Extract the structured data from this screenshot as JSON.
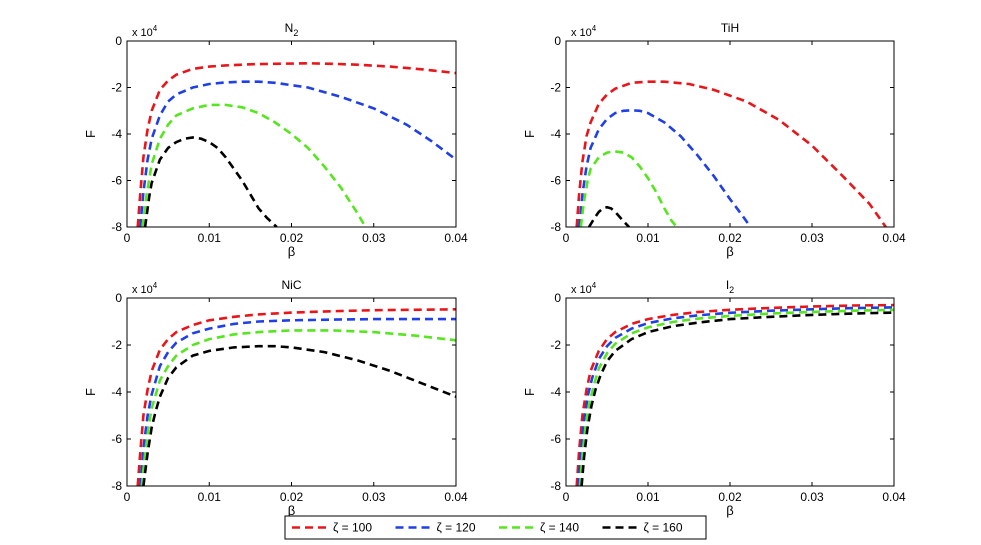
{
  "colors": {
    "red": "#e8161b",
    "blue": "#1f3fe8",
    "green": "#55e61e",
    "black": "#000000"
  },
  "legend": {
    "entries": [
      {
        "label": "ζ = 100",
        "color": "#e8161b"
      },
      {
        "label": "ζ = 120",
        "color": "#1f3fe8"
      },
      {
        "label": "ζ = 140",
        "color": "#55e61e"
      },
      {
        "label": "ζ = 160",
        "color": "#000000"
      }
    ]
  },
  "chart_data": [
    {
      "type": "line",
      "title_main": "N",
      "title_sub": "2",
      "xlabel": "β",
      "ylabel": "F",
      "exponent_label": "x 10",
      "exponent_power": "4",
      "xlim": [
        0,
        0.04
      ],
      "ylim": [
        -8,
        0
      ],
      "xticks": [
        "0",
        "0.01",
        "0.02",
        "0.03",
        "0.04"
      ],
      "yticks": [
        "0",
        "-2",
        "-4",
        "-6",
        "-8"
      ],
      "series": [
        {
          "name": "ζ = 100",
          "color": "#e8161b",
          "x": [
            0.0013,
            0.0016,
            0.002,
            0.0025,
            0.003,
            0.004,
            0.005,
            0.006,
            0.008,
            0.01,
            0.012,
            0.015,
            0.018,
            0.022,
            0.025,
            0.028,
            0.032,
            0.036,
            0.04
          ],
          "y": [
            -8,
            -6.6,
            -5.0,
            -3.8,
            -3.0,
            -2.1,
            -1.7,
            -1.45,
            -1.2,
            -1.1,
            -1.05,
            -1.0,
            -0.98,
            -0.96,
            -0.98,
            -1.02,
            -1.1,
            -1.22,
            -1.38
          ]
        },
        {
          "name": "ζ = 120",
          "color": "#1f3fe8",
          "x": [
            0.0016,
            0.002,
            0.0025,
            0.003,
            0.004,
            0.005,
            0.006,
            0.008,
            0.01,
            0.012,
            0.014,
            0.016,
            0.018,
            0.022,
            0.026,
            0.03,
            0.034,
            0.037,
            0.04
          ],
          "y": [
            -8,
            -6.5,
            -5.1,
            -4.2,
            -3.2,
            -2.6,
            -2.3,
            -2.0,
            -1.85,
            -1.78,
            -1.75,
            -1.75,
            -1.8,
            -2.0,
            -2.4,
            -2.9,
            -3.6,
            -4.3,
            -5.1
          ]
        },
        {
          "name": "ζ = 140",
          "color": "#55e61e",
          "x": [
            0.0019,
            0.0023,
            0.003,
            0.004,
            0.005,
            0.006,
            0.008,
            0.01,
            0.012,
            0.014,
            0.016,
            0.018,
            0.02,
            0.022,
            0.024,
            0.026,
            0.028,
            0.029
          ],
          "y": [
            -8,
            -6.8,
            -5.3,
            -4.2,
            -3.6,
            -3.2,
            -2.9,
            -2.75,
            -2.75,
            -2.85,
            -3.1,
            -3.5,
            -4.0,
            -4.6,
            -5.4,
            -6.3,
            -7.4,
            -8
          ]
        },
        {
          "name": "ζ = 160",
          "color": "#000000",
          "x": [
            0.0022,
            0.0027,
            0.003,
            0.004,
            0.005,
            0.006,
            0.007,
            0.008,
            0.009,
            0.01,
            0.011,
            0.012,
            0.013,
            0.014,
            0.015,
            0.016,
            0.017,
            0.0182
          ],
          "y": [
            -8,
            -6.7,
            -6.1,
            -5.1,
            -4.6,
            -4.35,
            -4.2,
            -4.15,
            -4.2,
            -4.35,
            -4.6,
            -5.0,
            -5.5,
            -6.0,
            -6.6,
            -7.2,
            -7.6,
            -8
          ]
        }
      ]
    },
    {
      "type": "line",
      "title_main": "TiH",
      "title_sub": "",
      "xlabel": "β",
      "ylabel": "F",
      "exponent_label": "x 10",
      "exponent_power": "4",
      "xlim": [
        0,
        0.04
      ],
      "ylim": [
        -8,
        0
      ],
      "xticks": [
        "0",
        "0.01",
        "0.02",
        "0.03",
        "0.04"
      ],
      "yticks": [
        "0",
        "-2",
        "-4",
        "-6",
        "-8"
      ],
      "series": [
        {
          "name": "ζ = 100",
          "color": "#e8161b",
          "x": [
            0.0013,
            0.0016,
            0.002,
            0.0025,
            0.003,
            0.004,
            0.005,
            0.006,
            0.008,
            0.01,
            0.012,
            0.015,
            0.018,
            0.022,
            0.026,
            0.03,
            0.034,
            0.037,
            0.039
          ],
          "y": [
            -8,
            -6.6,
            -5.2,
            -4.1,
            -3.5,
            -2.7,
            -2.3,
            -2.05,
            -1.8,
            -1.75,
            -1.75,
            -1.85,
            -2.1,
            -2.6,
            -3.4,
            -4.5,
            -5.9,
            -7.0,
            -8
          ]
        },
        {
          "name": "ζ = 120",
          "color": "#1f3fe8",
          "x": [
            0.0016,
            0.002,
            0.0025,
            0.003,
            0.004,
            0.005,
            0.006,
            0.007,
            0.008,
            0.009,
            0.01,
            0.012,
            0.014,
            0.016,
            0.018,
            0.02,
            0.0215,
            0.0225
          ],
          "y": [
            -8,
            -6.6,
            -5.4,
            -4.6,
            -3.8,
            -3.35,
            -3.1,
            -3.0,
            -2.98,
            -3.0,
            -3.1,
            -3.5,
            -4.1,
            -4.9,
            -5.8,
            -6.8,
            -7.5,
            -8
          ]
        },
        {
          "name": "ζ = 140",
          "color": "#55e61e",
          "x": [
            0.0018,
            0.0022,
            0.0027,
            0.003,
            0.004,
            0.005,
            0.006,
            0.007,
            0.008,
            0.009,
            0.01,
            0.011,
            0.012,
            0.0128,
            0.0135
          ],
          "y": [
            -8,
            -6.9,
            -5.9,
            -5.5,
            -5.0,
            -4.8,
            -4.75,
            -4.8,
            -5.0,
            -5.4,
            -5.9,
            -6.5,
            -7.2,
            -7.7,
            -8
          ]
        },
        {
          "name": "ζ = 160",
          "color": "#000000",
          "x": [
            0.0028,
            0.0035,
            0.004,
            0.0045,
            0.005,
            0.0055,
            0.006,
            0.0065,
            0.007,
            0.0077
          ],
          "y": [
            -8,
            -7.6,
            -7.35,
            -7.2,
            -7.15,
            -7.2,
            -7.35,
            -7.55,
            -7.75,
            -8
          ]
        }
      ]
    },
    {
      "type": "line",
      "title_main": "NiC",
      "title_sub": "",
      "xlabel": "β",
      "ylabel": "F",
      "exponent_label": "x 10",
      "exponent_power": "4",
      "xlim": [
        0,
        0.04
      ],
      "ylim": [
        -8,
        0
      ],
      "xticks": [
        "0",
        "0.01",
        "0.02",
        "0.03",
        "0.04"
      ],
      "yticks": [
        "0",
        "-2",
        "-4",
        "-6",
        "-8"
      ],
      "series": [
        {
          "name": "ζ = 100",
          "color": "#e8161b",
          "x": [
            0.0013,
            0.0016,
            0.002,
            0.0025,
            0.003,
            0.004,
            0.005,
            0.006,
            0.008,
            0.01,
            0.013,
            0.016,
            0.02,
            0.025,
            0.03,
            0.035,
            0.04
          ],
          "y": [
            -8,
            -6.6,
            -5.0,
            -3.9,
            -3.1,
            -2.2,
            -1.75,
            -1.45,
            -1.15,
            -0.95,
            -0.8,
            -0.7,
            -0.62,
            -0.56,
            -0.52,
            -0.5,
            -0.48
          ]
        },
        {
          "name": "ζ = 120",
          "color": "#1f3fe8",
          "x": [
            0.0016,
            0.002,
            0.0025,
            0.003,
            0.004,
            0.005,
            0.006,
            0.008,
            0.01,
            0.013,
            0.016,
            0.02,
            0.025,
            0.03,
            0.035,
            0.04
          ],
          "y": [
            -8,
            -6.4,
            -5.0,
            -4.1,
            -2.9,
            -2.3,
            -1.9,
            -1.5,
            -1.3,
            -1.1,
            -1.0,
            -0.95,
            -0.92,
            -0.9,
            -0.9,
            -0.9
          ]
        },
        {
          "name": "ζ = 140",
          "color": "#55e61e",
          "x": [
            0.0018,
            0.0022,
            0.0027,
            0.003,
            0.004,
            0.005,
            0.006,
            0.008,
            0.01,
            0.013,
            0.016,
            0.02,
            0.025,
            0.03,
            0.035,
            0.04
          ],
          "y": [
            -8,
            -6.6,
            -5.3,
            -4.7,
            -3.5,
            -2.9,
            -2.45,
            -2.0,
            -1.75,
            -1.55,
            -1.45,
            -1.38,
            -1.38,
            -1.45,
            -1.6,
            -1.8
          ]
        },
        {
          "name": "ζ = 160",
          "color": "#000000",
          "x": [
            0.002,
            0.0025,
            0.003,
            0.0035,
            0.004,
            0.005,
            0.006,
            0.008,
            0.01,
            0.013,
            0.016,
            0.018,
            0.02,
            0.024,
            0.028,
            0.032,
            0.036,
            0.04
          ],
          "y": [
            -8,
            -6.6,
            -5.5,
            -4.8,
            -4.2,
            -3.4,
            -2.95,
            -2.45,
            -2.25,
            -2.1,
            -2.05,
            -2.05,
            -2.1,
            -2.3,
            -2.65,
            -3.1,
            -3.65,
            -4.2
          ]
        }
      ]
    },
    {
      "type": "line",
      "title_main": "I",
      "title_sub": "2",
      "xlabel": "β",
      "ylabel": "F",
      "exponent_label": "x 10",
      "exponent_power": "4",
      "xlim": [
        0,
        0.04
      ],
      "ylim": [
        -8,
        0
      ],
      "xticks": [
        "0",
        "0.01",
        "0.02",
        "0.03",
        "0.04"
      ],
      "yticks": [
        "0",
        "-2",
        "-4",
        "-6",
        "-8"
      ],
      "series": [
        {
          "name": "ζ = 100",
          "color": "#e8161b",
          "x": [
            0.0013,
            0.0016,
            0.002,
            0.0025,
            0.003,
            0.004,
            0.005,
            0.006,
            0.008,
            0.01,
            0.013,
            0.016,
            0.02,
            0.025,
            0.03,
            0.035,
            0.04
          ],
          "y": [
            -8,
            -6.5,
            -5.0,
            -3.9,
            -3.1,
            -2.25,
            -1.75,
            -1.45,
            -1.1,
            -0.9,
            -0.72,
            -0.6,
            -0.5,
            -0.42,
            -0.36,
            -0.32,
            -0.3
          ]
        },
        {
          "name": "ζ = 120",
          "color": "#1f3fe8",
          "x": [
            0.0015,
            0.0018,
            0.0022,
            0.0027,
            0.0032,
            0.004,
            0.005,
            0.006,
            0.008,
            0.01,
            0.013,
            0.016,
            0.02,
            0.025,
            0.03,
            0.035,
            0.04
          ],
          "y": [
            -8,
            -6.6,
            -5.2,
            -4.1,
            -3.4,
            -2.6,
            -2.05,
            -1.7,
            -1.3,
            -1.07,
            -0.87,
            -0.74,
            -0.63,
            -0.54,
            -0.48,
            -0.43,
            -0.4
          ]
        },
        {
          "name": "ζ = 140",
          "color": "#55e61e",
          "x": [
            0.0017,
            0.002,
            0.0024,
            0.0029,
            0.0034,
            0.004,
            0.005,
            0.006,
            0.008,
            0.01,
            0.013,
            0.016,
            0.02,
            0.025,
            0.03,
            0.035,
            0.04
          ],
          "y": [
            -8,
            -6.7,
            -5.4,
            -4.4,
            -3.7,
            -3.0,
            -2.35,
            -1.95,
            -1.5,
            -1.25,
            -1.02,
            -0.88,
            -0.76,
            -0.66,
            -0.59,
            -0.54,
            -0.5
          ]
        },
        {
          "name": "ζ = 160",
          "color": "#000000",
          "x": [
            0.0019,
            0.0022,
            0.0026,
            0.0031,
            0.0036,
            0.0042,
            0.005,
            0.006,
            0.008,
            0.01,
            0.013,
            0.016,
            0.02,
            0.025,
            0.03,
            0.035,
            0.04
          ],
          "y": [
            -8,
            -6.8,
            -5.6,
            -4.6,
            -3.9,
            -3.3,
            -2.7,
            -2.25,
            -1.75,
            -1.45,
            -1.2,
            -1.05,
            -0.9,
            -0.8,
            -0.72,
            -0.66,
            -0.62
          ]
        }
      ]
    }
  ]
}
